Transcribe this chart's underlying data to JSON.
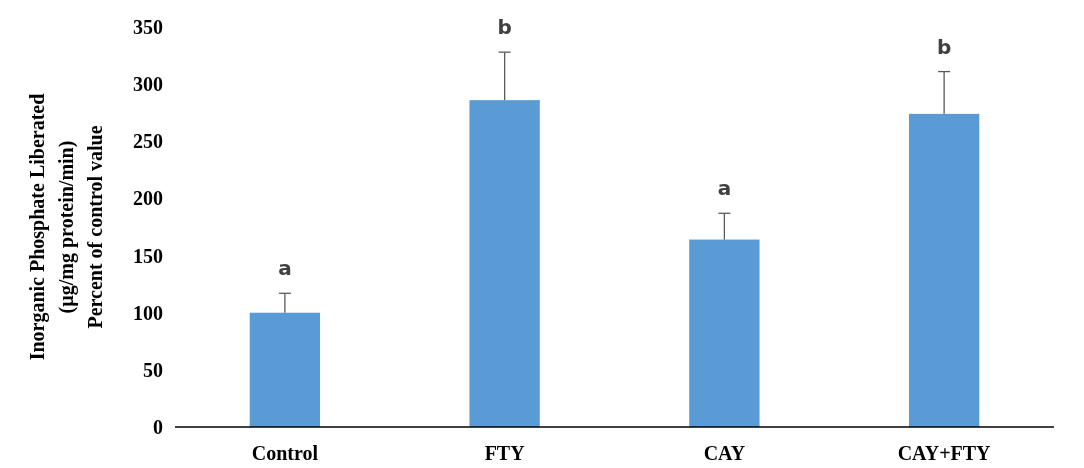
{
  "chart_data": {
    "type": "bar",
    "ylabel": "Inorganic Phosphate Liberated\n(µg/mg protein/min)\nPercent of control value",
    "categories": [
      "Control",
      "FTY",
      "CAY",
      "CAY+FTY"
    ],
    "values": [
      100,
      286,
      164,
      274
    ],
    "color": "#5b9bd5",
    "errors": [
      [
        100,
        117
      ],
      [
        286,
        328
      ],
      [
        164,
        187
      ],
      [
        274,
        311
      ]
    ],
    "ylim": [
      0,
      350
    ],
    "yticks": [
      0,
      50,
      100,
      150,
      200,
      250,
      300,
      350
    ],
    "grid": false,
    "annotations": [
      {
        "text": "a",
        "x": "Control",
        "y": 117
      },
      {
        "text": "b",
        "x": "FTY",
        "y": 328
      },
      {
        "text": "a",
        "x": "CAY",
        "y": 187
      },
      {
        "text": "b",
        "x": "CAY+FTY",
        "y": 311
      }
    ]
  }
}
